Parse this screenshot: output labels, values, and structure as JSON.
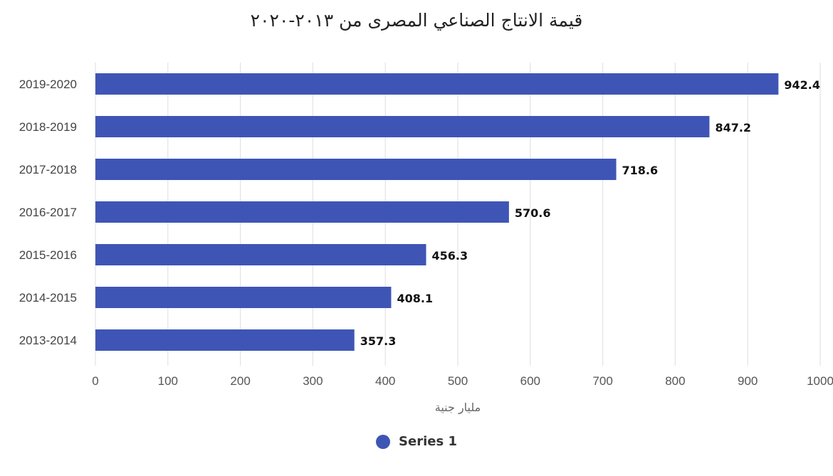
{
  "chart_data": {
    "type": "bar",
    "orientation": "horizontal",
    "title": "قيمة الانتاج الصناعي المصرى من ٢٠١٣-٢٠٢٠",
    "xlabel": "مليار جنية",
    "ylabel": "",
    "xlim": [
      0,
      1000
    ],
    "x_ticks": [
      0,
      100,
      200,
      300,
      400,
      500,
      600,
      700,
      800,
      900,
      1000
    ],
    "categories": [
      "2019-2020",
      "2018-2019",
      "2017-2018",
      "2016-2017",
      "2015-2016",
      "2014-2015",
      "2013-2014"
    ],
    "series": [
      {
        "name": "Series 1",
        "values": [
          942.4,
          847.2,
          718.6,
          570.6,
          456.3,
          408.1,
          357.3
        ]
      }
    ],
    "data_labels": [
      "942.4",
      "847.2",
      "718.6",
      "570.6",
      "456.3",
      "408.1",
      "357.3"
    ],
    "bar_color": "#3f55b5",
    "grid": true,
    "legend_position": "bottom"
  }
}
